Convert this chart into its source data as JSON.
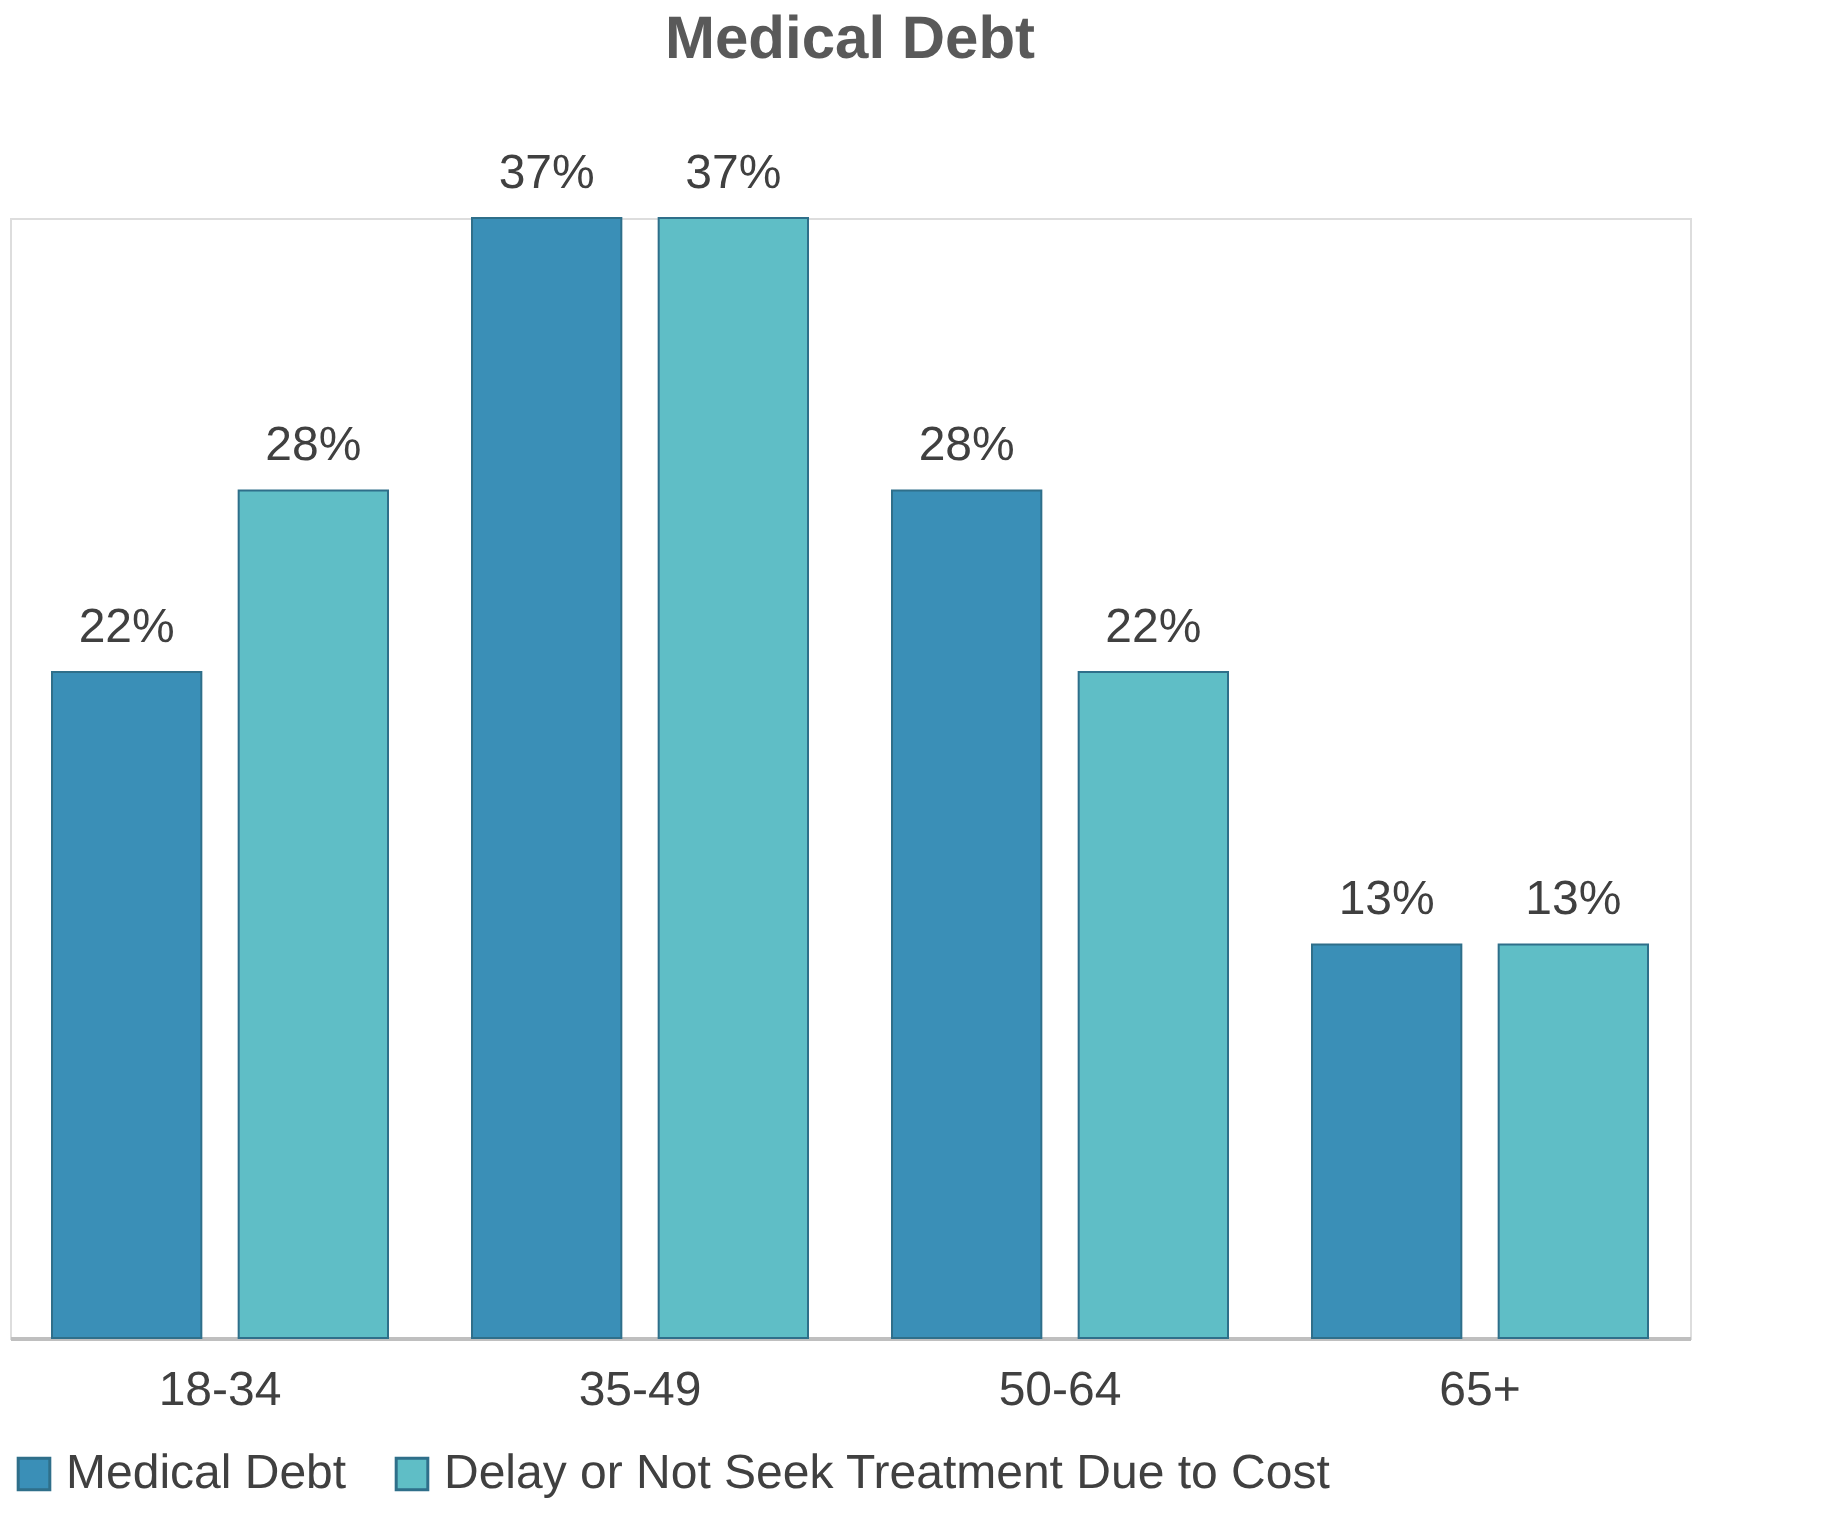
{
  "chart_data": {
    "type": "bar",
    "title": "Medical Debt",
    "categories": [
      "18-34",
      "35-49",
      "50-64",
      "65+"
    ],
    "series": [
      {
        "name": "Medical Debt",
        "color": "#3a8fb7",
        "values": [
          22,
          37,
          28,
          13
        ],
        "value_labels": [
          "22%",
          "37%",
          "28%",
          "13%"
        ]
      },
      {
        "name": "Delay or Not Seek Treatment Due to Cost",
        "color": "#5fbec6",
        "values": [
          28,
          37,
          22,
          13
        ],
        "value_labels": [
          "28%",
          "37%",
          "22%",
          "13%"
        ]
      }
    ],
    "legend": "bottom",
    "grid": false
  }
}
